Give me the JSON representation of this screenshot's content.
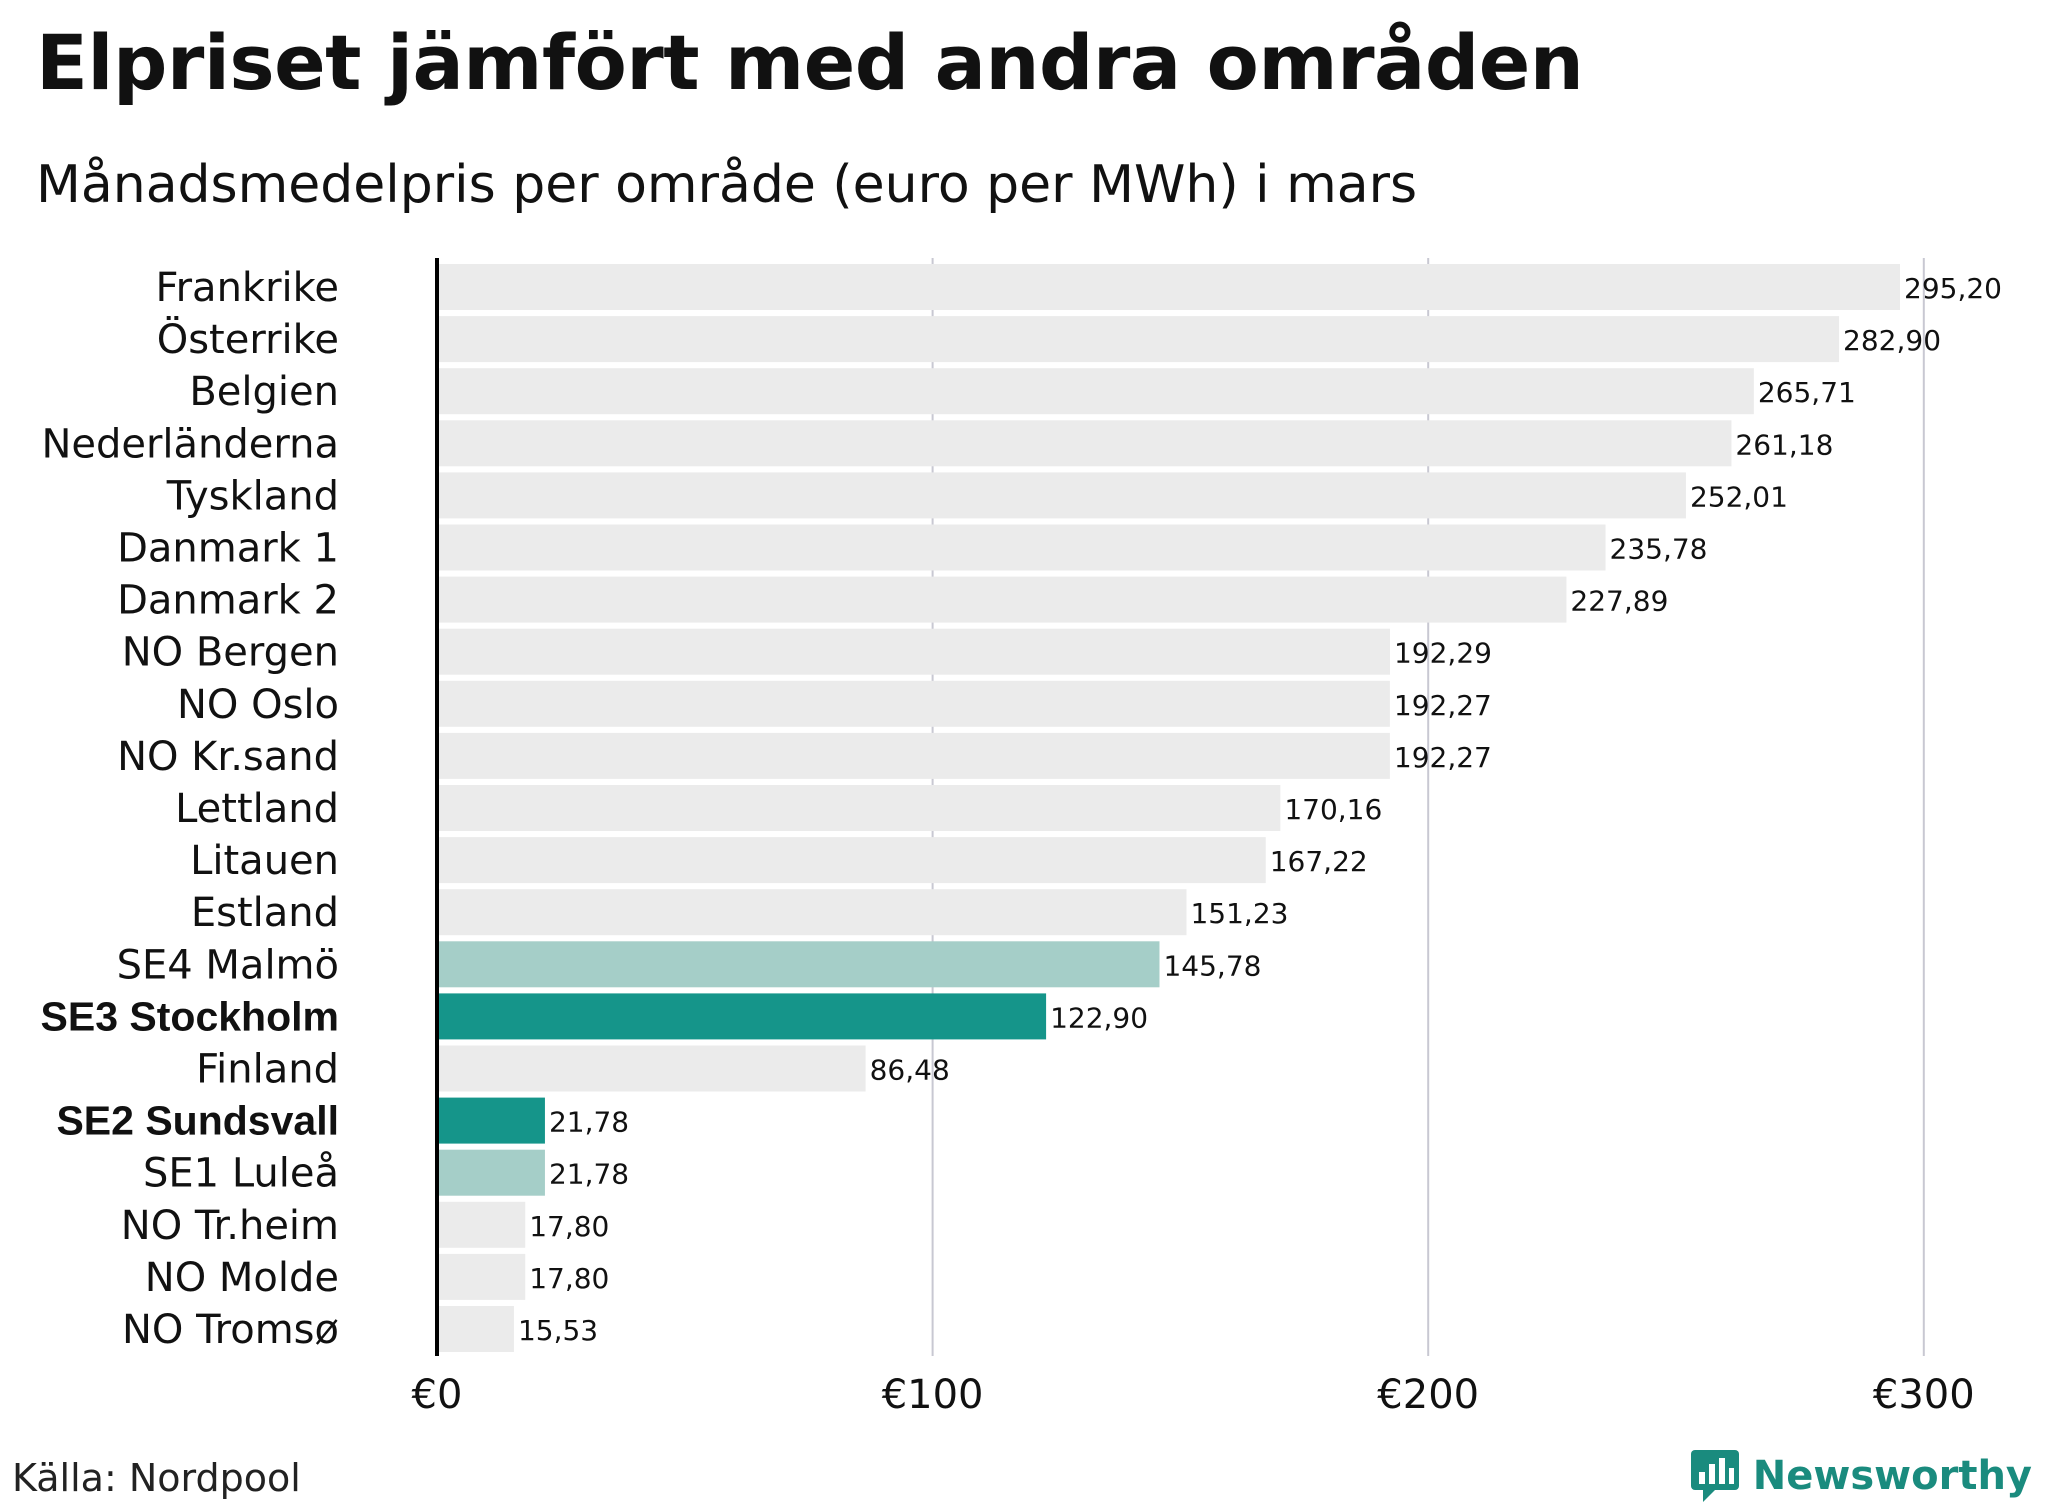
{
  "title": "Elpriset jämfört med andra områden",
  "subtitle": "Månadsmedelpris per område (euro per MWh) i mars",
  "source": "Källa: Nordpool",
  "brand": "Newsworthy",
  "colors": {
    "default_bar": "#ebebeb",
    "light_teal": "#a5cec8",
    "dark_teal": "#15958a",
    "gridline": "#c8c8d2",
    "axis": "#000000",
    "brand": "#1a8b7e"
  },
  "chart_data": {
    "type": "bar",
    "orientation": "horizontal",
    "title": "Elpriset jämfört med andra områden",
    "subtitle": "Månadsmedelpris per område (euro per MWh) i mars",
    "xlabel": "",
    "ylabel": "",
    "xlim": [
      0,
      310
    ],
    "ticks": [
      {
        "value": 0,
        "label": "€0"
      },
      {
        "value": 100,
        "label": "€100"
      },
      {
        "value": 200,
        "label": "€200"
      },
      {
        "value": 300,
        "label": "€300"
      }
    ],
    "grid": true,
    "bars": [
      {
        "category": "Frankrike",
        "value": 295.2,
        "label": "295,20",
        "color": "default",
        "bold": false
      },
      {
        "category": "Österrike",
        "value": 282.9,
        "label": "282,90",
        "color": "default",
        "bold": false
      },
      {
        "category": "Belgien",
        "value": 265.71,
        "label": "265,71",
        "color": "default",
        "bold": false
      },
      {
        "category": "Nederländerna",
        "value": 261.18,
        "label": "261,18",
        "color": "default",
        "bold": false
      },
      {
        "category": "Tyskland",
        "value": 252.01,
        "label": "252,01",
        "color": "default",
        "bold": false
      },
      {
        "category": "Danmark 1",
        "value": 235.78,
        "label": "235,78",
        "color": "default",
        "bold": false
      },
      {
        "category": "Danmark 2",
        "value": 227.89,
        "label": "227,89",
        "color": "default",
        "bold": false
      },
      {
        "category": "NO Bergen",
        "value": 192.29,
        "label": "192,29",
        "color": "default",
        "bold": false
      },
      {
        "category": "NO Oslo",
        "value": 192.27,
        "label": "192,27",
        "color": "default",
        "bold": false
      },
      {
        "category": "NO Kr.sand",
        "value": 192.27,
        "label": "192,27",
        "color": "default",
        "bold": false
      },
      {
        "category": "Lettland",
        "value": 170.16,
        "label": "170,16",
        "color": "default",
        "bold": false
      },
      {
        "category": "Litauen",
        "value": 167.22,
        "label": "167,22",
        "color": "default",
        "bold": false
      },
      {
        "category": "Estland",
        "value": 151.23,
        "label": "151,23",
        "color": "default",
        "bold": false
      },
      {
        "category": "SE4 Malmö",
        "value": 145.78,
        "label": "145,78",
        "color": "light_teal",
        "bold": false
      },
      {
        "category": "SE3 Stockholm",
        "value": 122.9,
        "label": "122,90",
        "color": "dark_teal",
        "bold": true
      },
      {
        "category": "Finland",
        "value": 86.48,
        "label": "86,48",
        "color": "default",
        "bold": false
      },
      {
        "category": "SE2 Sundsvall",
        "value": 21.78,
        "label": "21,78",
        "color": "dark_teal",
        "bold": true
      },
      {
        "category": "SE1 Luleå",
        "value": 21.78,
        "label": "21,78",
        "color": "light_teal",
        "bold": false
      },
      {
        "category": "NO Tr.heim",
        "value": 17.8,
        "label": "17,80",
        "color": "default",
        "bold": false
      },
      {
        "category": "NO Molde",
        "value": 17.8,
        "label": "17,80",
        "color": "default",
        "bold": false
      },
      {
        "category": "NO Tromsø",
        "value": 15.53,
        "label": "15,53",
        "color": "default",
        "bold": false
      }
    ]
  }
}
